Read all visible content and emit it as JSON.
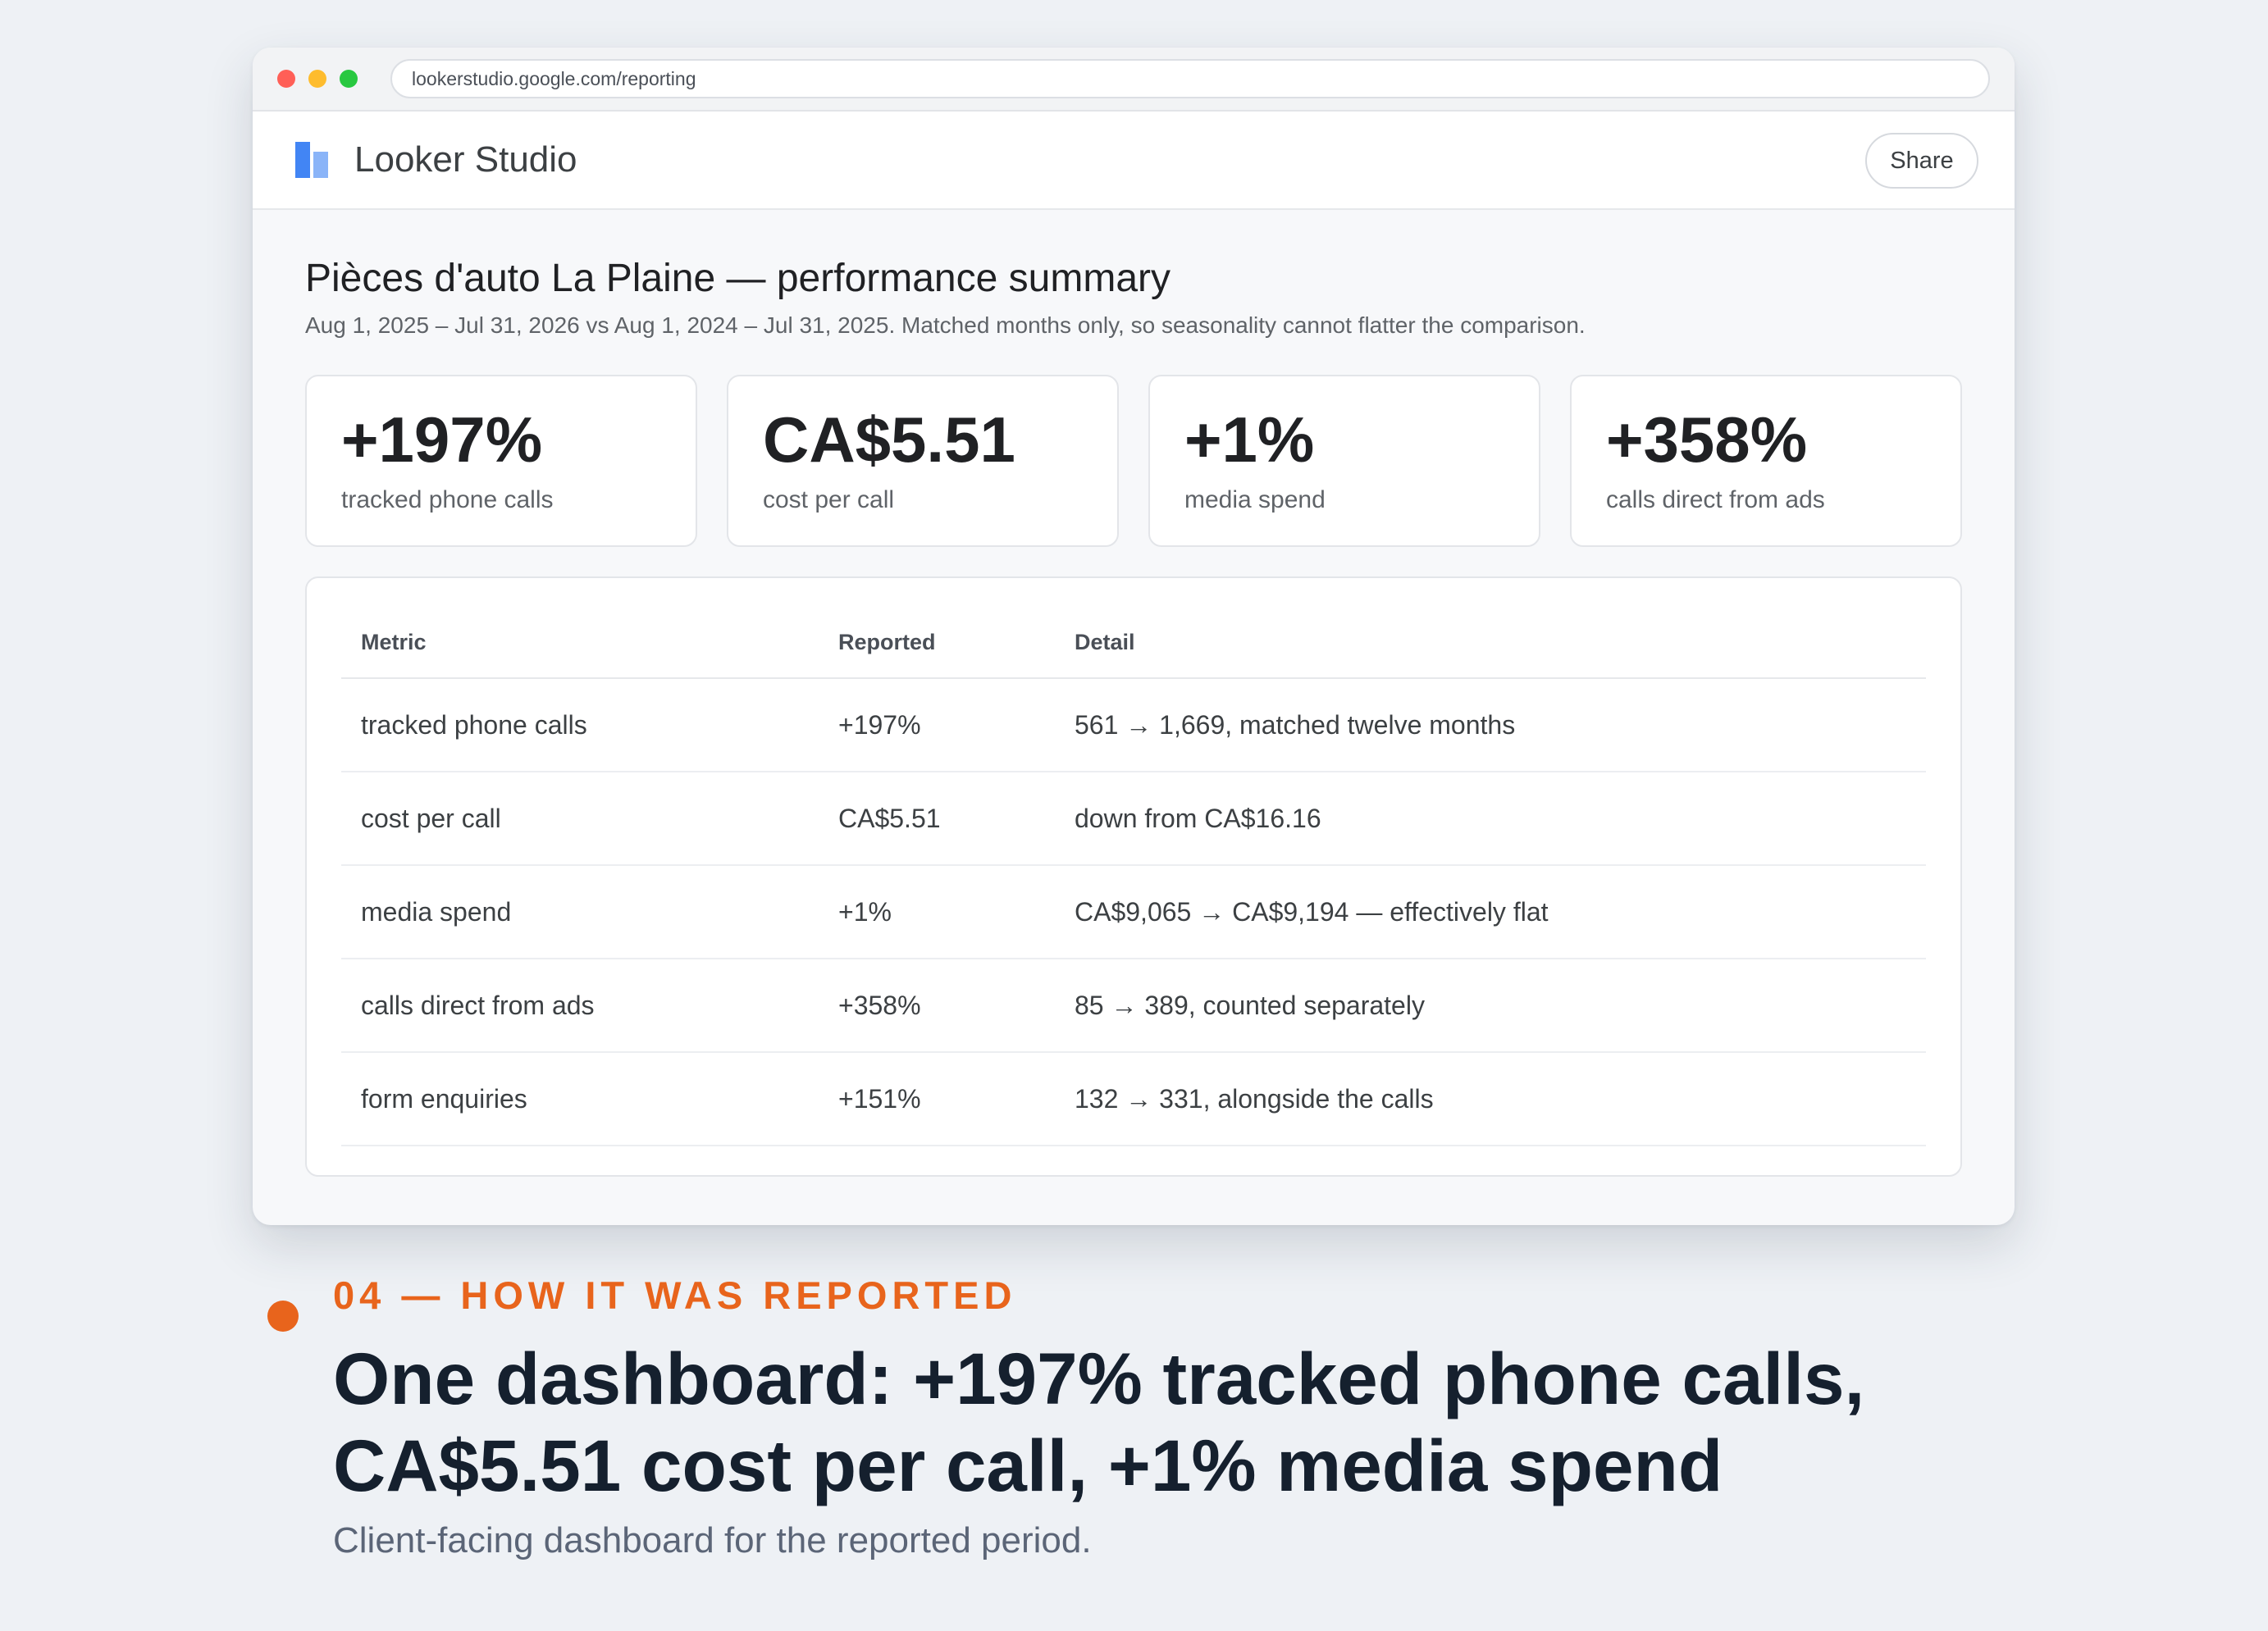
{
  "browser": {
    "url": "lookerstudio.google.com/reporting"
  },
  "app": {
    "name": "Looker Studio",
    "share_label": "Share",
    "brand_colors": {
      "logo_dark": "#4285f4",
      "logo_light": "#8ab4f8"
    }
  },
  "report": {
    "title": "Pièces d'auto La Plaine — performance summary",
    "subtitle": "Aug 1, 2025 – Jul 31, 2026 vs Aug 1, 2024 – Jul 31, 2025. Matched months only, so seasonality cannot flatter the comparison.",
    "kpis": [
      {
        "value": "+197%",
        "label": "tracked phone calls"
      },
      {
        "value": "CA$5.51",
        "label": "cost per call"
      },
      {
        "value": "+1%",
        "label": "media spend"
      },
      {
        "value": "+358%",
        "label": "calls direct from ads"
      }
    ],
    "table": {
      "headers": [
        "Metric",
        "Reported",
        "Detail"
      ],
      "rows": [
        [
          "tracked phone calls",
          "+197%",
          "561 → 1,669, matched twelve months"
        ],
        [
          "cost per call",
          "CA$5.51",
          "down from CA$16.16"
        ],
        [
          "media spend",
          "+1%",
          "CA$9,065 → CA$9,194 — effectively flat"
        ],
        [
          "calls direct from ads",
          "+358%",
          "85 → 389, counted separately"
        ],
        [
          "form enquiries",
          "+151%",
          "132 → 331, alongside the calls"
        ]
      ]
    }
  },
  "caption": {
    "kicker": "04 — HOW IT WAS REPORTED",
    "headline_line1": "One dashboard: +197% tracked phone calls,",
    "headline_line2": "CA$5.51 cost per call, +1% media spend",
    "subtitle": "Client-facing dashboard for the reported period.",
    "accent_color": "#e8641c"
  }
}
